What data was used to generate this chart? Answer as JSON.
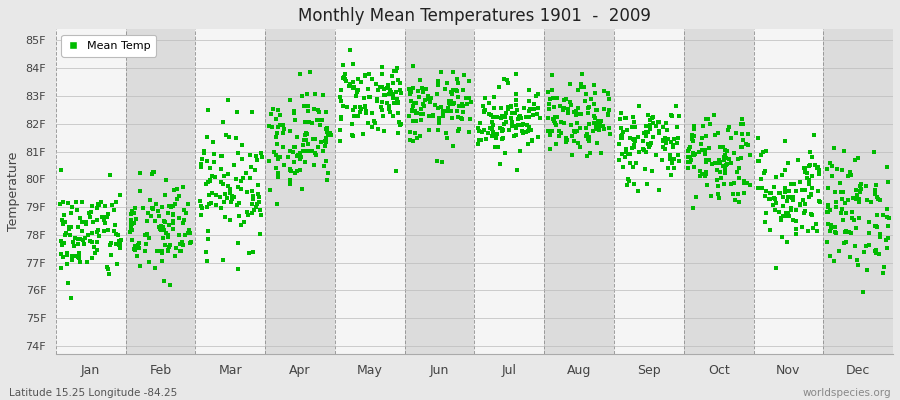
{
  "title": "Monthly Mean Temperatures 1901  -  2009",
  "ylabel": "Temperature",
  "xlabel_labels": [
    "Jan",
    "Feb",
    "Mar",
    "Apr",
    "May",
    "Jun",
    "Jul",
    "Aug",
    "Sep",
    "Oct",
    "Nov",
    "Dec"
  ],
  "legend_label": "Mean Temp",
  "dot_color": "#00bb00",
  "background_color": "#e8e8e8",
  "plot_bg_color": "#e8e8e8",
  "stripe_white": "#f5f5f5",
  "stripe_gray": "#dcdcdc",
  "ytick_labels": [
    "74F",
    "75F",
    "76F",
    "77F",
    "78F",
    "79F",
    "80F",
    "81F",
    "82F",
    "83F",
    "84F",
    "85F"
  ],
  "ytick_values": [
    74,
    75,
    76,
    77,
    78,
    79,
    80,
    81,
    82,
    83,
    84,
    85
  ],
  "ylim": [
    73.7,
    85.4
  ],
  "xlim": [
    0,
    12
  ],
  "footer_left": "Latitude 15.25 Longitude -84.25",
  "footer_right": "worldspecies.org",
  "num_years": 109,
  "monthly_means": [
    78.0,
    78.2,
    79.8,
    81.5,
    82.9,
    82.5,
    82.2,
    82.1,
    81.3,
    80.8,
    79.5,
    78.8
  ],
  "monthly_stds": [
    0.85,
    0.95,
    1.1,
    0.9,
    0.75,
    0.65,
    0.65,
    0.65,
    0.75,
    0.85,
    0.95,
    1.1
  ],
  "random_seed": 42
}
